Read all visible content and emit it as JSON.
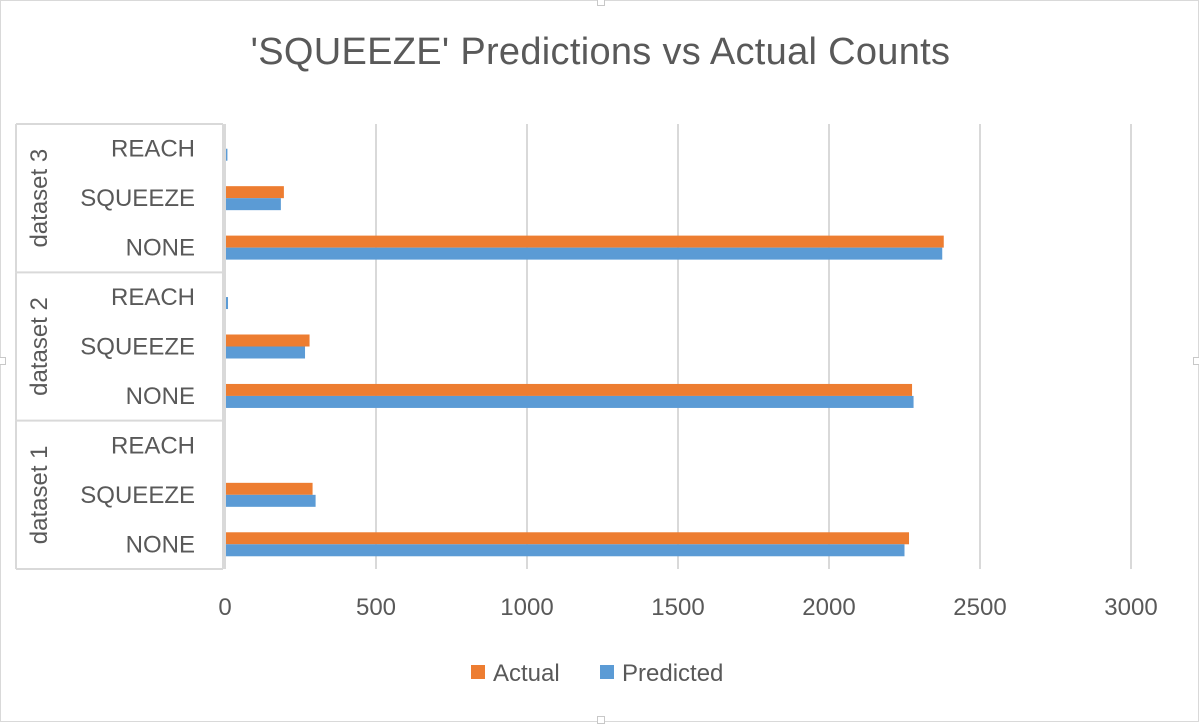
{
  "chart_data": {
    "type": "bar",
    "orientation": "horizontal",
    "title": "'SQUEEZE' Predictions vs Actual Counts",
    "xlim": [
      0,
      3000
    ],
    "xticks": [
      "0",
      "500",
      "1000",
      "1500",
      "2000",
      "2500",
      "3000"
    ],
    "grid": true,
    "legend_position": "bottom",
    "groups": [
      {
        "name": "dataset 1",
        "categories": [
          "NONE",
          "SQUEEZE",
          "REACH"
        ],
        "series": [
          {
            "name": "Actual",
            "values": [
              2265,
              290,
              0
            ]
          },
          {
            "name": "Predicted",
            "values": [
              2250,
              300,
              0
            ]
          }
        ]
      },
      {
        "name": "dataset 2",
        "categories": [
          "NONE",
          "SQUEEZE",
          "REACH"
        ],
        "series": [
          {
            "name": "Actual",
            "values": [
              2275,
              280,
              0
            ]
          },
          {
            "name": "Predicted",
            "values": [
              2280,
              265,
              10
            ]
          }
        ]
      },
      {
        "name": "dataset 3",
        "categories": [
          "NONE",
          "SQUEEZE",
          "REACH"
        ],
        "series": [
          {
            "name": "Actual",
            "values": [
              2380,
              195,
              0
            ]
          },
          {
            "name": "Predicted",
            "values": [
              2375,
              185,
              8
            ]
          }
        ]
      }
    ],
    "colors": {
      "Actual": "#ED7D31",
      "Predicted": "#5B9BD5",
      "grid": "#d9d9d9",
      "text": "#595959"
    }
  }
}
